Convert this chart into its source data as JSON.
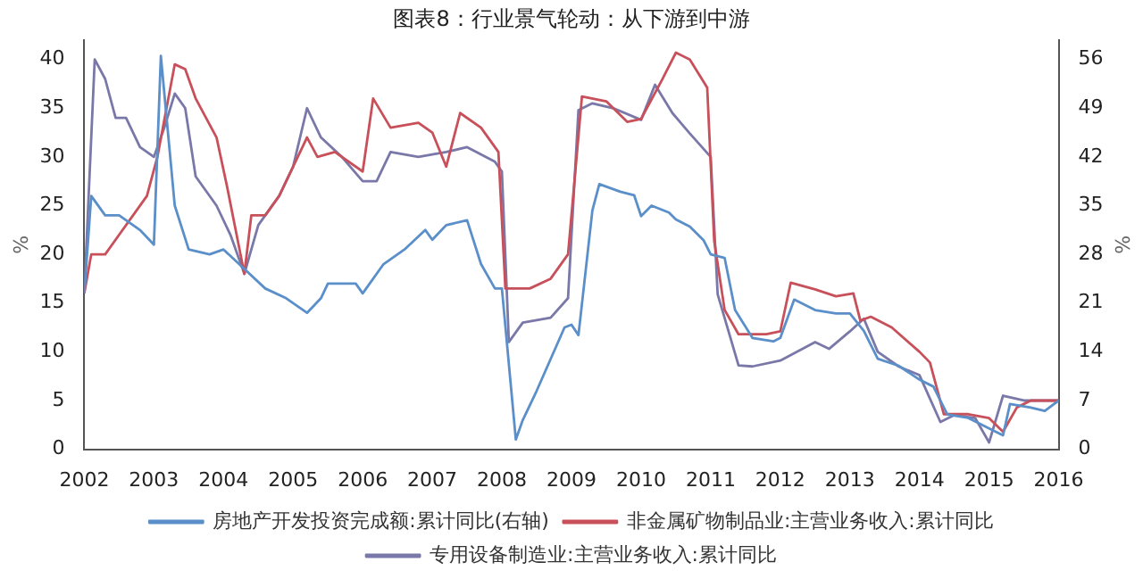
{
  "chart_data": {
    "type": "line",
    "title": "图表8：行业景气轮动：从下游到中游",
    "xlim": [
      2002,
      2016
    ],
    "xticks": [
      2002,
      2003,
      2004,
      2005,
      2006,
      2007,
      2008,
      2009,
      2010,
      2011,
      2012,
      2013,
      2014,
      2015,
      2016
    ],
    "ylabel": "%",
    "y2label": "%",
    "ylim": [
      0,
      42
    ],
    "yticks": [
      0,
      5,
      10,
      15,
      20,
      25,
      30,
      35,
      40
    ],
    "y2lim": [
      0,
      58.8
    ],
    "y2ticks": [
      0,
      7,
      14,
      21,
      28,
      35,
      42,
      49,
      56
    ],
    "legend": "bottom",
    "grid": false,
    "marker": "none",
    "line_style": "solid",
    "series": [
      {
        "name": "房地产开发投资完成额:累计同比(右轴)",
        "color": "#5b8fc9",
        "axis": "y2",
        "x": [
          2002.0,
          2002.1,
          2002.3,
          2002.5,
          2002.8,
          2003.0,
          2003.1,
          2003.3,
          2003.5,
          2003.8,
          2004.0,
          2004.3,
          2004.6,
          2004.9,
          2005.2,
          2005.4,
          2005.5,
          2005.9,
          2006.0,
          2006.3,
          2006.6,
          2006.9,
          2007.0,
          2007.2,
          2007.5,
          2007.7,
          2007.9,
          2008.0,
          2008.2,
          2008.3,
          2008.5,
          2008.9,
          2009.0,
          2009.1,
          2009.3,
          2009.4,
          2009.7,
          2009.9,
          2010.0,
          2010.15,
          2010.4,
          2010.5,
          2010.7,
          2010.9,
          2011.0,
          2011.2,
          2011.35,
          2011.6,
          2011.9,
          2012.0,
          2012.2,
          2012.5,
          2012.8,
          2013.0,
          2013.2,
          2013.4,
          2013.7,
          2014.0,
          2014.2,
          2014.4,
          2014.7,
          2015.0,
          2015.2,
          2015.3,
          2015.6,
          2015.8,
          2016.0
        ],
        "values": [
          22.4,
          36.4,
          33.6,
          33.6,
          31.5,
          29.4,
          56.5,
          35,
          28.7,
          28,
          28.7,
          25.9,
          23.1,
          21.7,
          19.6,
          21.7,
          23.8,
          23.8,
          22.4,
          26.6,
          28.7,
          31.5,
          30.1,
          32.2,
          32.9,
          26.6,
          23.1,
          23.1,
          1.4,
          4.2,
          8.4,
          17.5,
          17.9,
          16.4,
          34.3,
          38.1,
          37,
          36.5,
          33.5,
          35,
          34,
          33,
          32,
          30,
          28,
          27.5,
          20,
          16,
          15.5,
          16,
          21.5,
          20,
          19.5,
          19.5,
          17,
          13,
          12,
          10,
          9,
          5,
          4.5,
          3,
          2,
          6.5,
          6,
          5.5,
          7
        ]
      },
      {
        "name": "非金属矿物制品业:主营业务收入:累计同比",
        "color": "#c8505a",
        "x": [
          2002.0,
          2002.1,
          2002.3,
          2002.5,
          2002.9,
          2003.05,
          2003.3,
          2003.45,
          2003.6,
          2003.9,
          2004.05,
          2004.3,
          2004.4,
          2004.6,
          2004.8,
          2005.2,
          2005.35,
          2005.6,
          2006.0,
          2006.15,
          2006.4,
          2006.8,
          2007.0,
          2007.2,
          2007.4,
          2007.7,
          2007.95,
          2008.05,
          2008.4,
          2008.7,
          2008.95,
          2009.15,
          2009.5,
          2009.8,
          2010.0,
          2010.3,
          2010.5,
          2010.7,
          2010.95,
          2011.05,
          2011.2,
          2011.4,
          2011.8,
          2012.0,
          2012.15,
          2012.5,
          2012.8,
          2013.05,
          2013.15,
          2013.3,
          2013.6,
          2014.0,
          2014.15,
          2014.35,
          2014.7,
          2015.0,
          2015.2,
          2015.4,
          2015.6,
          2016.0
        ],
        "values": [
          16,
          20,
          20,
          22,
          26,
          30,
          39.5,
          39,
          36,
          32,
          27,
          18,
          24,
          24,
          26,
          32,
          30,
          30.5,
          28.5,
          36,
          33,
          33.5,
          32.5,
          29,
          34.5,
          33,
          30.5,
          16.5,
          16.5,
          17.5,
          20,
          36.2,
          35.7,
          33.6,
          33.9,
          37.9,
          40.7,
          40,
          37.1,
          21.4,
          14.3,
          11.8,
          11.8,
          12.1,
          17.1,
          16.4,
          15.7,
          16,
          13.2,
          13.6,
          12.5,
          10,
          8.9,
          3.6,
          3.6,
          3.2,
          1.8,
          4.3,
          5,
          5
        ]
      },
      {
        "name": "专用设备制造业:主营业务收入:累计同比",
        "color": "#7a78a8",
        "x": [
          2002.0,
          2002.15,
          2002.3,
          2002.45,
          2002.6,
          2002.8,
          2003.0,
          2003.15,
          2003.3,
          2003.45,
          2003.6,
          2003.9,
          2004.1,
          2004.3,
          2004.5,
          2004.8,
          2005.0,
          2005.2,
          2005.4,
          2005.7,
          2006.0,
          2006.2,
          2006.4,
          2006.8,
          2007.2,
          2007.5,
          2007.9,
          2008.0,
          2008.1,
          2008.3,
          2008.7,
          2008.95,
          2009.1,
          2009.3,
          2009.6,
          2010.0,
          2010.2,
          2010.45,
          2010.7,
          2011.0,
          2011.1,
          2011.4,
          2011.6,
          2012.0,
          2012.5,
          2012.7,
          2013.0,
          2013.2,
          2013.4,
          2013.7,
          2014.0,
          2014.3,
          2014.5,
          2014.8,
          2015.0,
          2015.2,
          2015.5,
          2016.0
        ],
        "values": [
          16,
          40,
          38,
          34,
          34,
          31,
          30,
          33,
          36.5,
          35,
          28,
          25,
          22,
          18,
          23,
          26,
          29,
          35,
          32,
          30,
          27.5,
          27.5,
          30.5,
          30,
          30.5,
          31,
          29.5,
          28.5,
          11,
          13,
          13.5,
          15.5,
          34.8,
          35.5,
          35,
          33.8,
          37.4,
          34.5,
          32.4,
          30,
          15.9,
          8.6,
          8.5,
          9.1,
          11,
          10.3,
          12.1,
          13.4,
          10,
          8.5,
          7.6,
          2.8,
          3.5,
          3.2,
          0.7,
          5.5,
          5,
          5
        ]
      }
    ]
  }
}
